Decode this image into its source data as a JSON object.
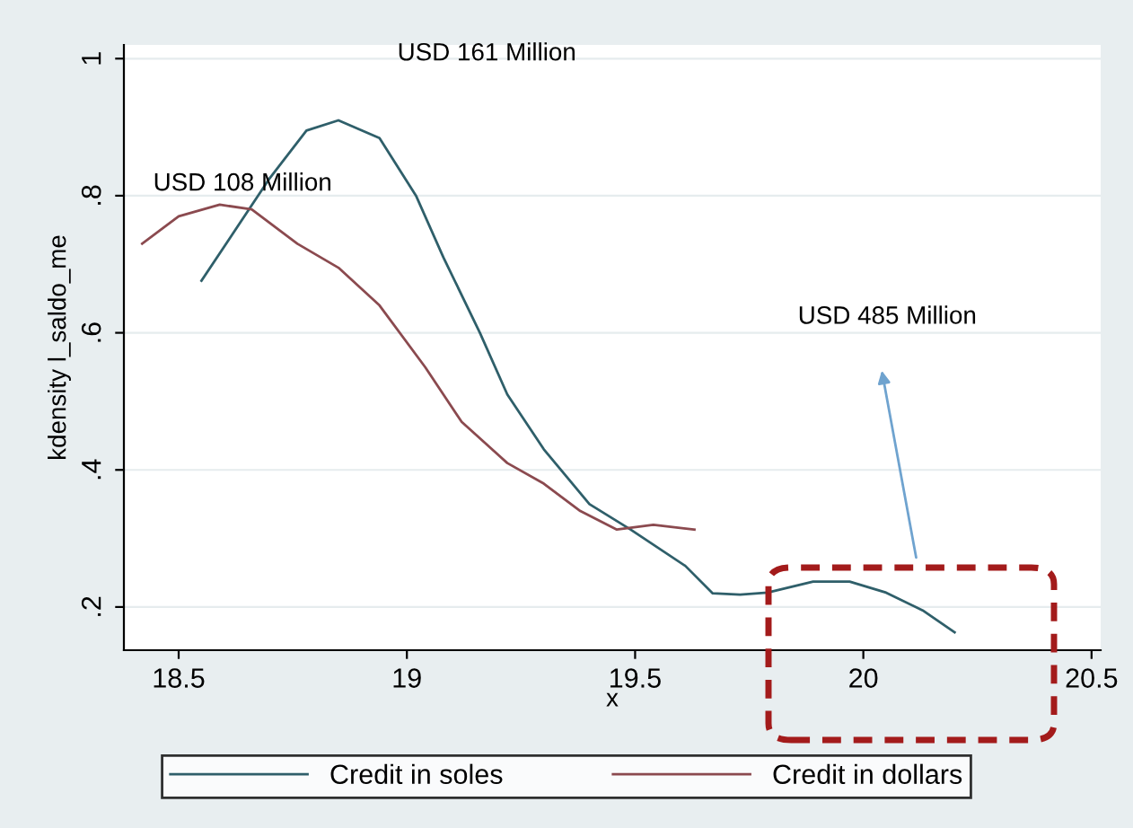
{
  "chart_data": {
    "type": "line",
    "xlabel": "x",
    "ylabel": "kdensity l_saldo_me",
    "series": [
      {
        "name": "Credit in soles",
        "color": "#2f5f6a",
        "x": [
          18.55,
          18.7,
          18.78,
          18.85,
          18.94,
          19.02,
          19.08,
          19.16,
          19.22,
          19.3,
          19.4,
          19.49,
          19.61,
          19.67,
          19.73,
          19.79,
          19.89,
          19.97,
          20.05,
          20.13,
          20.2
        ],
        "values": [
          0.676,
          0.826,
          0.895,
          0.91,
          0.884,
          0.8,
          0.71,
          0.6,
          0.51,
          0.43,
          0.35,
          0.313,
          0.26,
          0.22,
          0.218,
          0.221,
          0.237,
          0.237,
          0.221,
          0.195,
          0.163
        ]
      },
      {
        "name": "Credit in dollars",
        "color": "#8b4a4f",
        "x": [
          18.42,
          18.5,
          18.59,
          18.66,
          18.76,
          18.85,
          18.94,
          19.04,
          19.12,
          19.22,
          19.3,
          19.38,
          19.46,
          19.54,
          19.63
        ],
        "values": [
          0.73,
          0.77,
          0.787,
          0.78,
          0.73,
          0.695,
          0.64,
          0.55,
          0.47,
          0.41,
          0.38,
          0.34,
          0.313,
          0.32,
          0.313
        ]
      }
    ],
    "xlim": [
      18.38,
      20.52
    ],
    "xticks": [
      18.5,
      19,
      19.5,
      20,
      20.5
    ],
    "ylim": [
      0.137,
      1.02
    ],
    "yticks": [
      {
        "value": 0.2,
        "label": ".2"
      },
      {
        "value": 0.4,
        "label": ".4"
      },
      {
        "value": 0.6,
        "label": ".6"
      },
      {
        "value": 0.8,
        "label": ".8"
      },
      {
        "value": 1,
        "label": "1"
      }
    ],
    "grid": "y",
    "legend": "bottom",
    "marker": "none",
    "line_style": "solid",
    "annotations": [
      "USD 161 Million",
      "USD 108 Million",
      "USD 485 Million"
    ]
  }
}
